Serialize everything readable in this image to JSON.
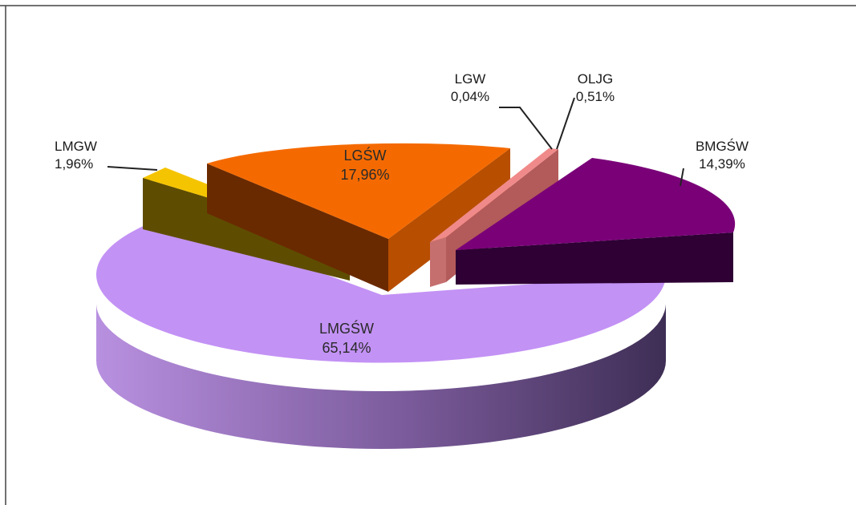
{
  "chart_data": {
    "type": "pie",
    "three_d": true,
    "exploded": true,
    "title": "",
    "slices": [
      {
        "name": "LMGŚW",
        "label": "LMGŚW",
        "value_label": "65,14%",
        "value": 65.14,
        "color": "#c392f5"
      },
      {
        "name": "LMGW",
        "label": "LMGW",
        "value_label": "1,96%",
        "value": 1.96,
        "color": "#f5c400"
      },
      {
        "name": "LGŚW",
        "label": "LGŚW",
        "value_label": "17,96%",
        "value": 17.96,
        "color": "#f56a00"
      },
      {
        "name": "LGW",
        "label": "LGW",
        "value_label": "0,04%",
        "value": 0.04,
        "color": "#d4d4d4"
      },
      {
        "name": "OLJG",
        "label": "OLJG",
        "value_label": "0,51%",
        "value": 0.51,
        "color": "#f08a8a"
      },
      {
        "name": "BMGŚW",
        "label": "BMGŚW",
        "value_label": "14,39%",
        "value": 14.39,
        "color": "#7a0078"
      }
    ],
    "legend": "none"
  }
}
